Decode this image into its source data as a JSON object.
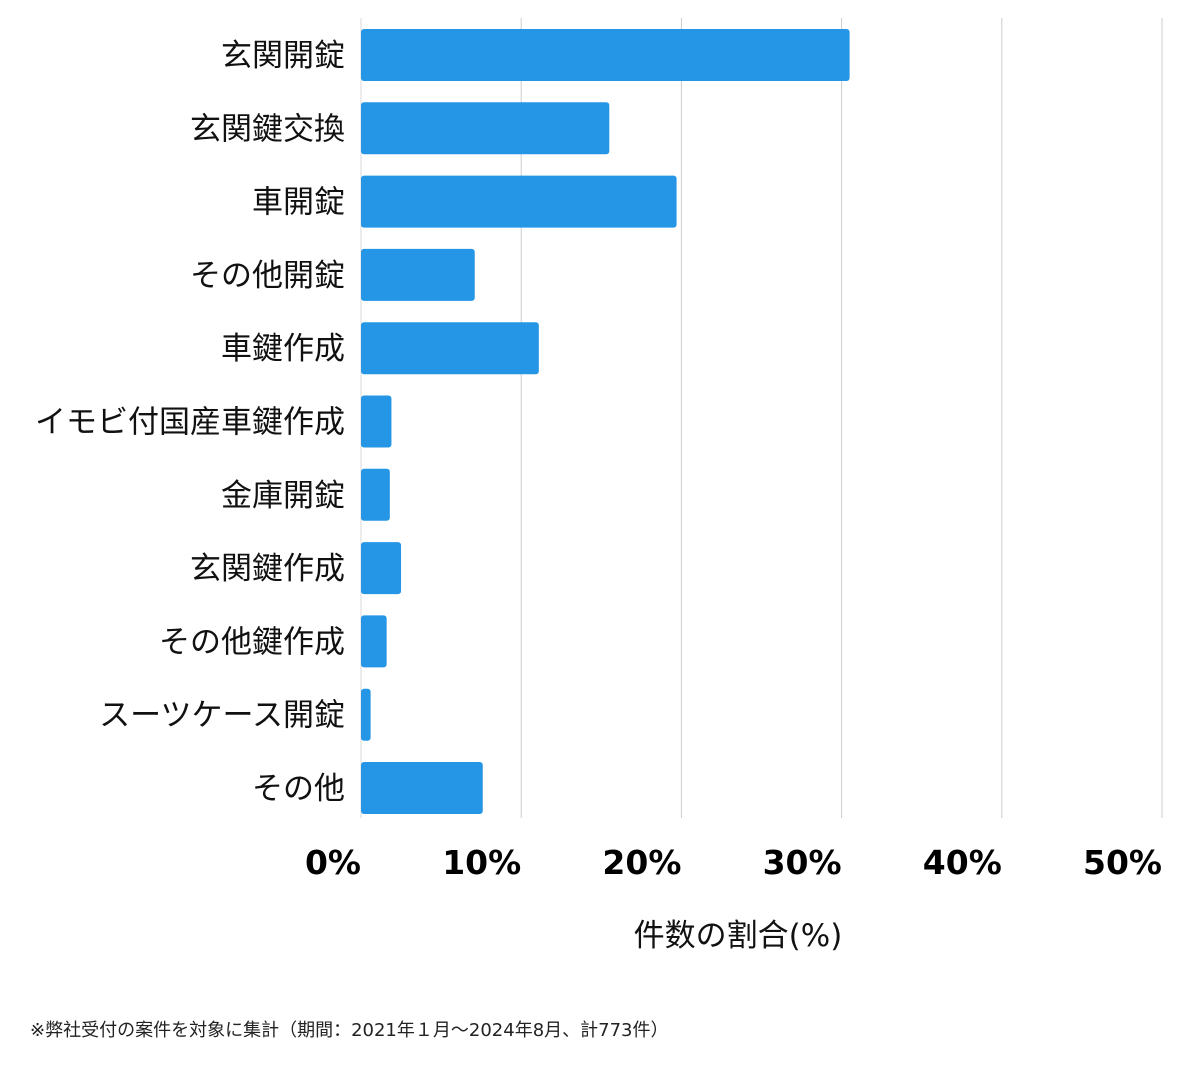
{
  "chart_data": {
    "type": "bar",
    "orientation": "horizontal",
    "categories": [
      "玄関開錠",
      "玄関鍵交換",
      "車開錠",
      "その他開錠",
      "車鍵作成",
      "イモビ付国産車鍵作成",
      "金庫開錠",
      "玄関鍵作成",
      "その他鍵作成",
      "スーツケース開錠",
      "その他"
    ],
    "values": [
      30.5,
      15.5,
      19.7,
      7.1,
      11.1,
      1.9,
      1.8,
      2.5,
      1.6,
      0.6,
      7.6
    ],
    "xticks": [
      "0%",
      "10%",
      "20%",
      "30%",
      "40%",
      "50%"
    ],
    "xlim": [
      0,
      50
    ],
    "xlabel": "件数の割合(%)",
    "ylabel": "",
    "grid": true,
    "bar_color": "#2596e6",
    "grid_color": "#cccccc"
  },
  "footnote": "※弊社受付の案件を対象に集計（期間：2021年１月～2024年8月、計773件）"
}
